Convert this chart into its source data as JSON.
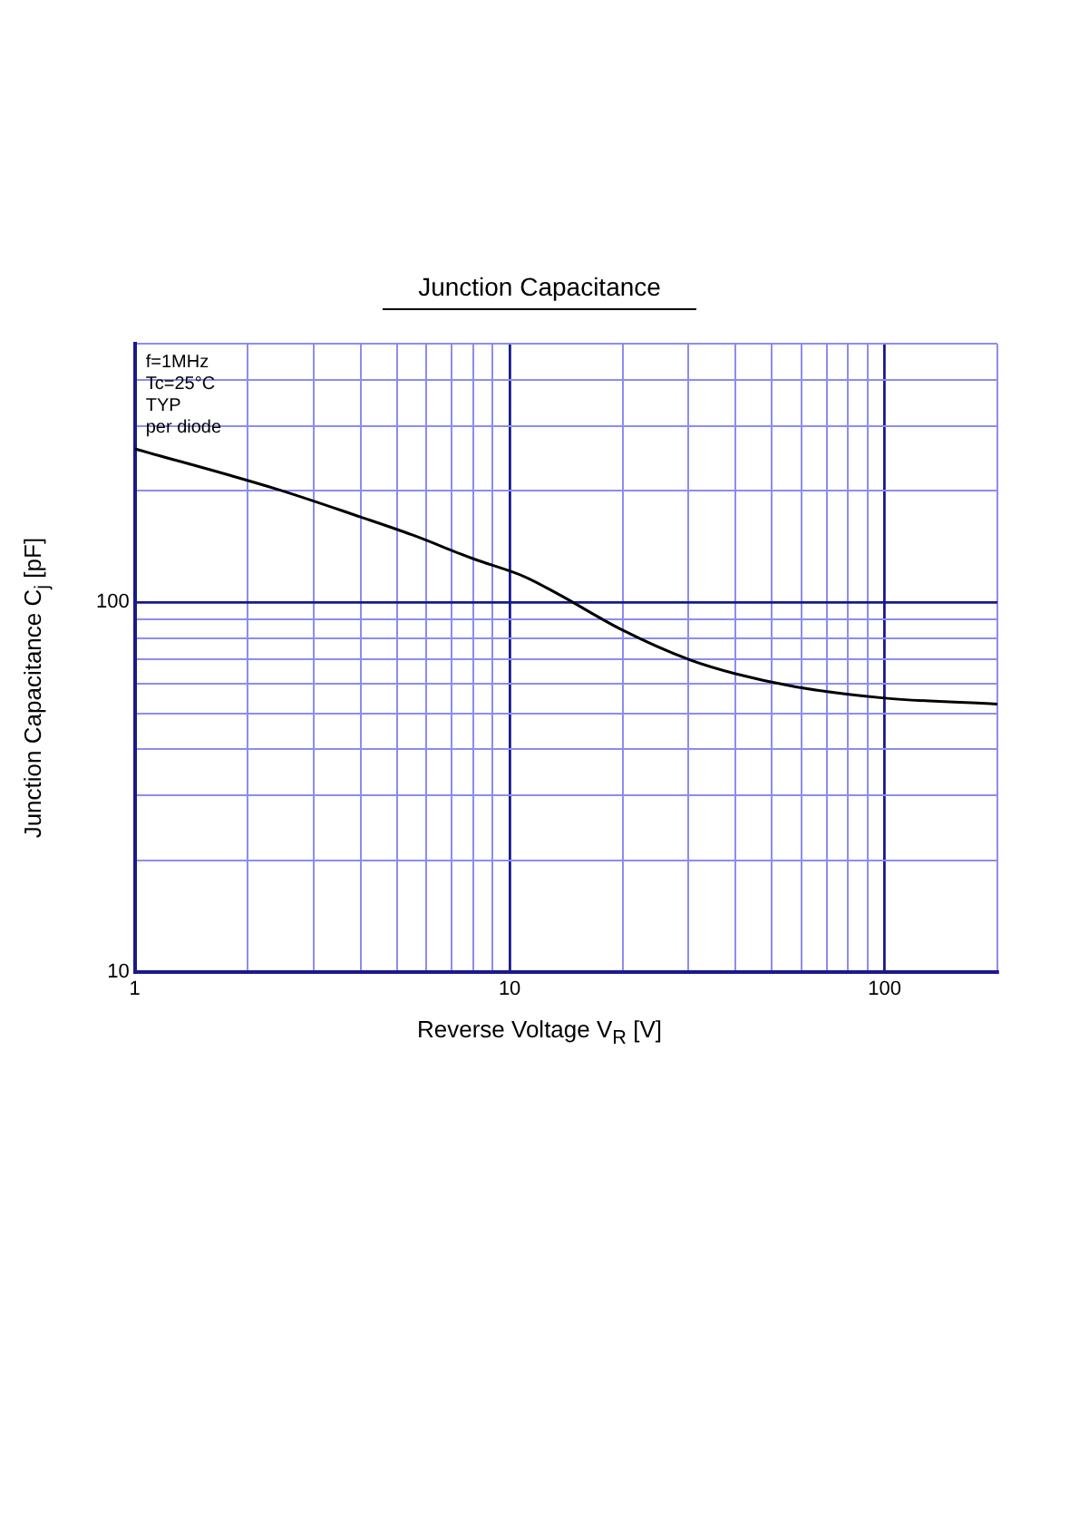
{
  "chart_data": {
    "type": "line",
    "title": "Junction Capacitance",
    "xlabel": "Reverse Voltage  V$_{R}$  [V]",
    "ylabel": "Junction Capacitance  C$_{j}$  [pF]",
    "log": "xy",
    "grid": true,
    "legend": false,
    "marker": "none",
    "line_style": "solid",
    "annotations": [
      "f=1MHz",
      "Tc=25°C",
      "TYP",
      "per diode"
    ],
    "x": [
      1,
      2.4,
      4,
      5.5,
      8,
      11,
      13.5,
      20,
      30,
      40,
      58,
      100,
      200
    ],
    "series": [
      {
        "color": "#000000",
        "values": [
          260,
          202,
          170,
          152,
          131,
          117,
          105,
          84,
          70,
          64,
          59,
          55,
          53
        ]
      }
    ],
    "xlim": [
      1,
      200
    ],
    "xticks": [
      1,
      {
        "value": 2,
        "label": null
      },
      {
        "value": 3,
        "label": null
      },
      {
        "value": 4,
        "label": null
      },
      {
        "value": 5,
        "label": null
      },
      {
        "value": 6,
        "label": null
      },
      {
        "value": 7,
        "label": null
      },
      {
        "value": 8,
        "label": null
      },
      {
        "value": 9,
        "label": null
      },
      10,
      {
        "value": 20,
        "label": null
      },
      {
        "value": 30,
        "label": null
      },
      {
        "value": 40,
        "label": null
      },
      {
        "value": 50,
        "label": null
      },
      {
        "value": 60,
        "label": null
      },
      {
        "value": 70,
        "label": null
      },
      {
        "value": 80,
        "label": null
      },
      {
        "value": 90,
        "label": null
      },
      100,
      {
        "value": 200,
        "label": null
      }
    ],
    "ylim": [
      10,
      500
    ],
    "yticks": [
      10,
      {
        "value": 20,
        "label": null
      },
      {
        "value": 30,
        "label": null
      },
      {
        "value": 40,
        "label": null
      },
      {
        "value": 50,
        "label": null
      },
      {
        "value": 60,
        "label": null
      },
      {
        "value": 70,
        "label": null
      },
      {
        "value": 80,
        "label": null
      },
      {
        "value": 90,
        "label": null
      },
      100,
      {
        "value": 200,
        "label": null
      },
      {
        "value": 300,
        "label": null
      },
      {
        "value": 400,
        "label": null
      },
      {
        "value": 500,
        "label": null
      }
    ]
  }
}
